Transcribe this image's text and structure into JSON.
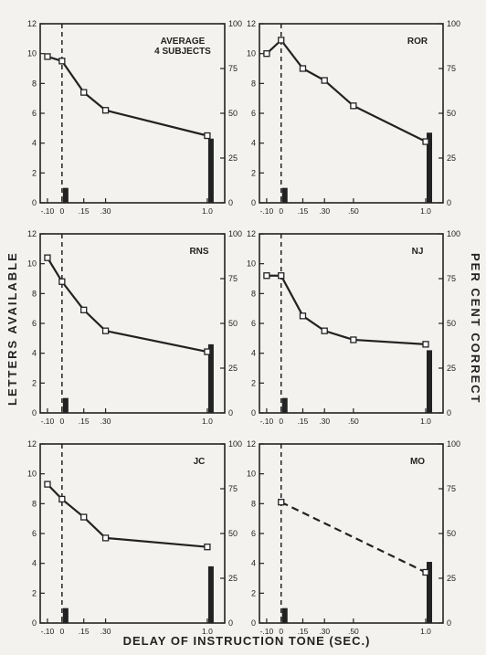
{
  "figure": {
    "ylabel_left": "LETTERS AVAILABLE",
    "ylabel_right": "PER CENT CORRECT",
    "xlabel": "DELAY OF INSTRUCTION TONE (SEC.)",
    "colors": {
      "ink": "#222222",
      "background": "#f4f2ee"
    }
  },
  "chart_data": [
    {
      "type": "line",
      "title": "AVERAGE 4 SUBJECTS",
      "line_style": "solid",
      "x": [
        -0.1,
        0,
        0.15,
        0.3,
        1.0
      ],
      "y": [
        9.8,
        9.5,
        7.4,
        6.2,
        4.5
      ],
      "x_tick_labels": [
        "-.10",
        "0",
        ".15",
        ".30",
        "1.0"
      ],
      "bars": [
        {
          "x": 0,
          "value": 1.0
        },
        {
          "x": 1.0,
          "value": 4.3
        }
      ],
      "ylim_left": [
        0,
        12
      ],
      "ylim_right": [
        0,
        100
      ],
      "y_ticks_left": [
        "0",
        "2",
        "4",
        "6",
        "8",
        "10",
        "12"
      ],
      "y_ticks_right": [
        "0",
        "25",
        "50",
        "75",
        "100"
      ]
    },
    {
      "type": "line",
      "title": "ROR",
      "line_style": "solid",
      "x": [
        -0.1,
        0,
        0.15,
        0.3,
        0.5,
        1.0
      ],
      "y": [
        10.0,
        10.9,
        9.0,
        8.2,
        6.5,
        4.1
      ],
      "x_tick_labels": [
        "-.10",
        "0",
        ".15",
        ".30",
        ".50",
        "1.0"
      ],
      "bars": [
        {
          "x": 0,
          "value": 1.0
        },
        {
          "x": 1.0,
          "value": 4.7
        }
      ],
      "ylim_left": [
        0,
        12
      ],
      "ylim_right": [
        0,
        100
      ],
      "y_ticks_left": [
        "0",
        "2",
        "4",
        "6",
        "8",
        "10",
        "12"
      ],
      "y_ticks_right": [
        "0",
        "25",
        "50",
        "75",
        "100"
      ]
    },
    {
      "type": "line",
      "title": "RNS",
      "line_style": "solid",
      "x": [
        -0.1,
        0,
        0.15,
        0.3,
        1.0
      ],
      "y": [
        10.4,
        8.8,
        6.9,
        5.5,
        4.1
      ],
      "x_tick_labels": [
        "-.10",
        "0",
        ".15",
        ".30",
        "1.0"
      ],
      "bars": [
        {
          "x": 0,
          "value": 1.0
        },
        {
          "x": 1.0,
          "value": 4.6
        }
      ],
      "ylim_left": [
        0,
        12
      ],
      "ylim_right": [
        0,
        100
      ],
      "y_ticks_left": [
        "0",
        "2",
        "4",
        "6",
        "8",
        "10",
        "12"
      ],
      "y_ticks_right": [
        "0",
        "25",
        "50",
        "75",
        "100"
      ]
    },
    {
      "type": "line",
      "title": "NJ",
      "line_style": "solid",
      "x": [
        -0.1,
        0,
        0.15,
        0.3,
        0.5,
        1.0
      ],
      "y": [
        9.2,
        9.2,
        6.5,
        5.5,
        4.9,
        4.6
      ],
      "x_tick_labels": [
        "-.10",
        "0",
        ".15",
        ".30",
        ".50",
        "1.0"
      ],
      "bars": [
        {
          "x": 0,
          "value": 1.0
        },
        {
          "x": 1.0,
          "value": 4.2
        }
      ],
      "ylim_left": [
        0,
        12
      ],
      "ylim_right": [
        0,
        100
      ],
      "y_ticks_left": [
        "0",
        "2",
        "4",
        "6",
        "8",
        "10",
        "12"
      ],
      "y_ticks_right": [
        "0",
        "25",
        "50",
        "75",
        "100"
      ]
    },
    {
      "type": "line",
      "title": "JC",
      "line_style": "solid",
      "x": [
        -0.1,
        0,
        0.15,
        0.3,
        1.0
      ],
      "y": [
        9.3,
        8.3,
        7.1,
        5.7,
        5.1
      ],
      "x_tick_labels": [
        "-.10",
        "0",
        ".15",
        ".30",
        "1.0"
      ],
      "bars": [
        {
          "x": 0,
          "value": 1.0
        },
        {
          "x": 1.0,
          "value": 3.8
        }
      ],
      "ylim_left": [
        0,
        12
      ],
      "ylim_right": [
        0,
        100
      ],
      "y_ticks_left": [
        "0",
        "2",
        "4",
        "6",
        "8",
        "10",
        "12"
      ],
      "y_ticks_right": [
        "0",
        "25",
        "50",
        "75",
        "100"
      ]
    },
    {
      "type": "line",
      "title": "MO",
      "line_style": "dashed",
      "x": [
        0,
        1.0
      ],
      "y": [
        8.1,
        3.4
      ],
      "x_tick_labels": [
        "-.10",
        "0",
        ".15",
        ".30",
        ".50",
        "1.0"
      ],
      "bars": [
        {
          "x": 0,
          "value": 1.0
        },
        {
          "x": 1.0,
          "value": 4.1
        }
      ],
      "ylim_left": [
        0,
        12
      ],
      "ylim_right": [
        0,
        100
      ],
      "y_ticks_left": [
        "0",
        "2",
        "4",
        "6",
        "8",
        "10",
        "12"
      ],
      "y_ticks_right": [
        "0",
        "25",
        "50",
        "75",
        "100"
      ]
    }
  ]
}
